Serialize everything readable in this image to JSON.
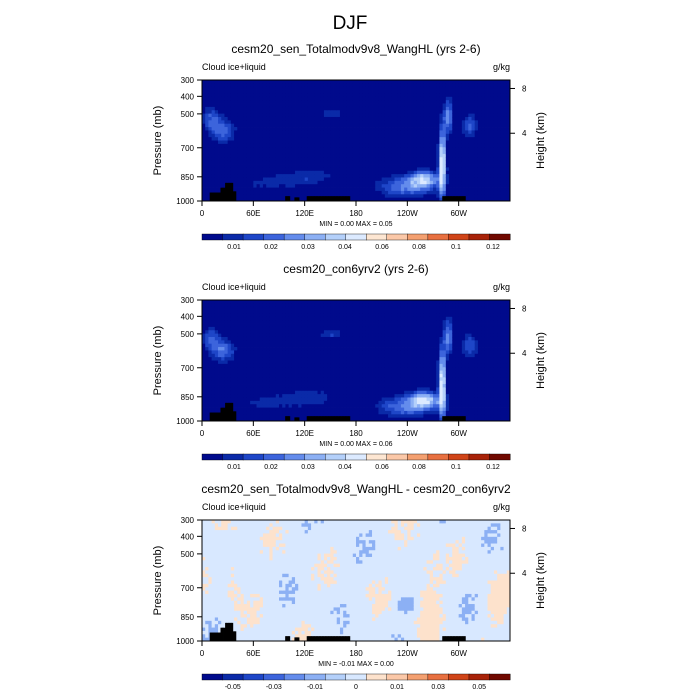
{
  "figure": {
    "title": "DJF"
  },
  "colors": {
    "seq": [
      "#000a8c",
      "#0a2aa8",
      "#1e46c8",
      "#3c64dc",
      "#648cec",
      "#8cb0f4",
      "#b4d0fa",
      "#dceaff",
      "#fde6d2",
      "#fbc8a8",
      "#f4a070",
      "#e87040",
      "#d04418",
      "#a82208",
      "#700800"
    ],
    "div": [
      "#000a8c",
      "#0a2aa8",
      "#1e46c8",
      "#3c64dc",
      "#648cec",
      "#8cb0f4",
      "#b4d0fa",
      "#d8e8ff",
      "#fde2cc",
      "#fbc8a8",
      "#f4a070",
      "#e87040",
      "#d04418",
      "#a82208",
      "#700800"
    ],
    "terrain": "#000000"
  },
  "chart_data": [
    {
      "type": "heatmap",
      "title": "cesm20_sen_Totalmodv9v8_WangHL (yrs 2-6)",
      "left_label": "Cloud ice+liquid",
      "units": "g/kg",
      "ylabel": "Pressure (mb)",
      "ylabel_right": "Height (km)",
      "y_ticks": [
        "300",
        "400",
        "500",
        "700",
        "850",
        "1000"
      ],
      "y_right_ticks": [
        "8",
        "4"
      ],
      "x_ticks": [
        "0",
        "60E",
        "120E",
        "180",
        "120W",
        "60W"
      ],
      "min_max": "MIN =   0.00  MAX =   0.05",
      "colorbar_labels": [
        "0.01",
        "0.02",
        "0.03",
        "0.04",
        "0.06",
        "0.08",
        "0.1",
        "0.12"
      ]
    },
    {
      "type": "heatmap",
      "title": "cesm20_con6yrv2 (yrs 2-6)",
      "left_label": "Cloud ice+liquid",
      "units": "g/kg",
      "ylabel": "Pressure (mb)",
      "ylabel_right": "Height (km)",
      "y_ticks": [
        "300",
        "400",
        "500",
        "700",
        "850",
        "1000"
      ],
      "y_right_ticks": [
        "8",
        "4"
      ],
      "x_ticks": [
        "0",
        "60E",
        "120E",
        "180",
        "120W",
        "60W"
      ],
      "min_max": "MIN =   0.00  MAX =   0.06",
      "colorbar_labels": [
        "0.01",
        "0.02",
        "0.03",
        "0.04",
        "0.06",
        "0.08",
        "0.1",
        "0.12"
      ]
    },
    {
      "type": "heatmap",
      "title": "cesm20_sen_Totalmodv9v8_WangHL - cesm20_con6yrv2",
      "left_label": "Cloud ice+liquid",
      "units": "g/kg",
      "ylabel": "Pressure (mb)",
      "ylabel_right": "Height (km)",
      "y_ticks": [
        "300",
        "400",
        "500",
        "700",
        "850",
        "1000"
      ],
      "y_right_ticks": [
        "8",
        "4"
      ],
      "x_ticks": [
        "0",
        "60E",
        "120E",
        "180",
        "120W",
        "60W"
      ],
      "min_max": "MIN =  -0.01  MAX =   0.00",
      "colorbar_labels": [
        "-0.05",
        "-0.03",
        "-0.01",
        "0",
        "0.01",
        "0.03",
        "0.05"
      ]
    }
  ]
}
